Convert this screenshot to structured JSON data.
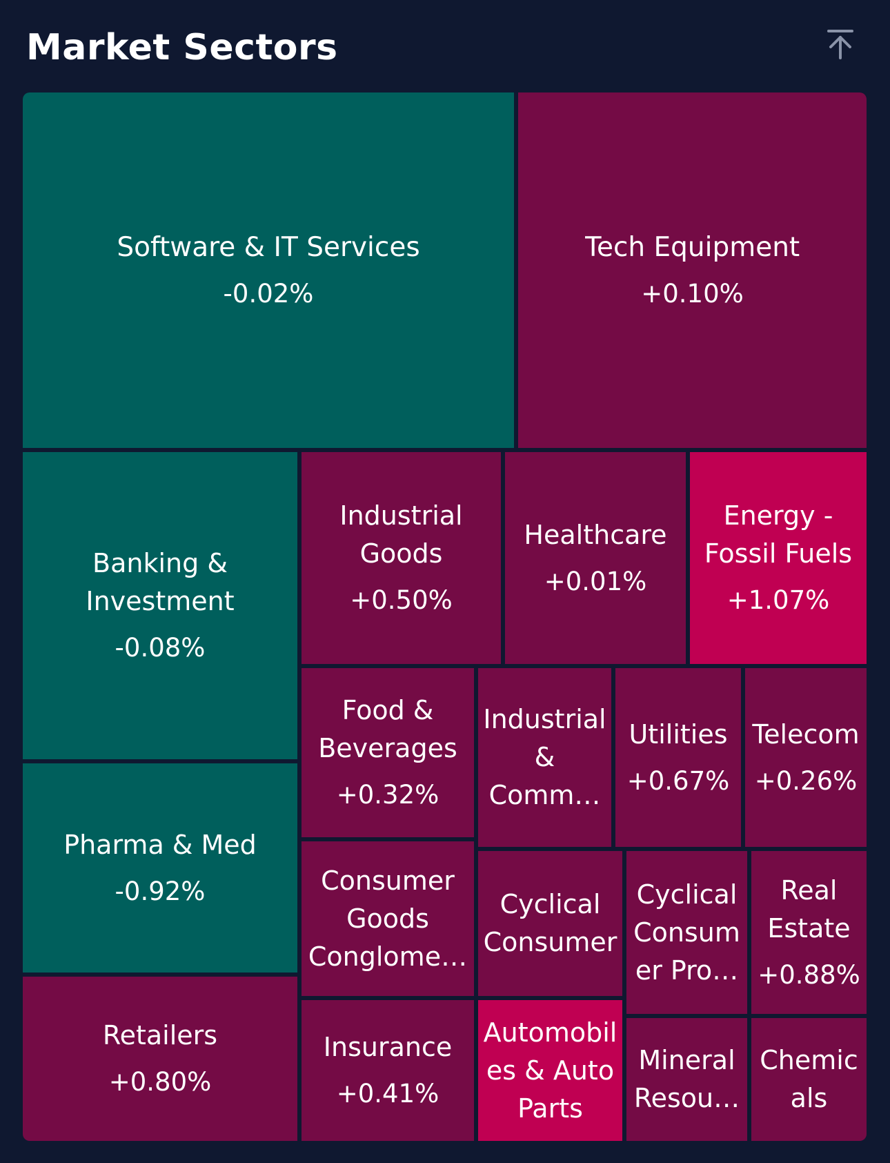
{
  "header": {
    "title": "Market Sectors",
    "collapse_icon": "collapse-to-top-icon"
  },
  "colors": {
    "background": "#0f1830",
    "negative": "#005f5c",
    "positive": "#740b45",
    "strong_positive": "#c00052"
  },
  "chart_data": {
    "type": "treemap",
    "title": "Market Sectors",
    "sectors": [
      {
        "label": "Software & IT Services",
        "name": "Software & IT Services",
        "change": "-0.02%",
        "value": -0.02,
        "color": "negative"
      },
      {
        "label": "Tech Equipment",
        "name": "Tech Equipment",
        "change": "+0.10%",
        "value": 0.1,
        "color": "positive"
      },
      {
        "label": "Banking & Investment",
        "name": "Banking & Investment",
        "change": "-0.08%",
        "value": -0.08,
        "color": "negative"
      },
      {
        "label": "Industrial Goods",
        "name": "Industrial Goods",
        "change": "+0.50%",
        "value": 0.5,
        "color": "positive"
      },
      {
        "label": "Healthcare",
        "name": "Healthcare",
        "change": "+0.01%",
        "value": 0.01,
        "color": "positive"
      },
      {
        "label": "Energy - Fossil Fuels",
        "name": "Energy - Fossil Fuels",
        "change": "+1.07%",
        "value": 1.07,
        "color": "strong_positive"
      },
      {
        "label": "Food & Beverages",
        "name": "Food & Beverages",
        "change": "+0.32%",
        "value": 0.32,
        "color": "positive"
      },
      {
        "label": "Industrial & Comm…",
        "name": "Industrial & Comm…",
        "change": "",
        "value": null,
        "color": "positive"
      },
      {
        "label": "Utilities",
        "name": "Utilities",
        "change": "+0.67%",
        "value": 0.67,
        "color": "positive"
      },
      {
        "label": "Telecom",
        "name": "Telecom",
        "change": "+0.26%",
        "value": 0.26,
        "color": "positive"
      },
      {
        "label": "Pharma & Med",
        "name": "Pharma & Med",
        "change": "-0.92%",
        "value": -0.92,
        "color": "negative"
      },
      {
        "label": "Consumer Goods Conglome…",
        "name": "Consumer Goods Conglome…",
        "change": "",
        "value": null,
        "color": "positive"
      },
      {
        "label": "Cyclical Consumer",
        "name": "Cyclical Consumer",
        "change": "",
        "value": null,
        "color": "positive"
      },
      {
        "label": "Cyclical Consum er Pro…",
        "name": "Cyclical Consum er Pro…",
        "change": "",
        "value": null,
        "color": "positive"
      },
      {
        "label": "Real Estate",
        "name": "Real Estate",
        "change": "+0.88%",
        "value": 0.88,
        "color": "positive"
      },
      {
        "label": "Retailers",
        "name": "Retailers",
        "change": "+0.80%",
        "value": 0.8,
        "color": "positive"
      },
      {
        "label": "Insurance",
        "name": "Insurance",
        "change": "+0.41%",
        "value": 0.41,
        "color": "positive"
      },
      {
        "label": "Automobil es & Auto Parts",
        "name": "Automobil es & Auto Parts",
        "change": "",
        "value": null,
        "color": "strong_positive"
      },
      {
        "label": "Mineral Resou…",
        "name": "Mineral Resou…",
        "change": "",
        "value": null,
        "color": "positive"
      },
      {
        "label": "Chemic als",
        "name": "Chemic als",
        "change": "",
        "value": null,
        "color": "positive"
      }
    ]
  }
}
